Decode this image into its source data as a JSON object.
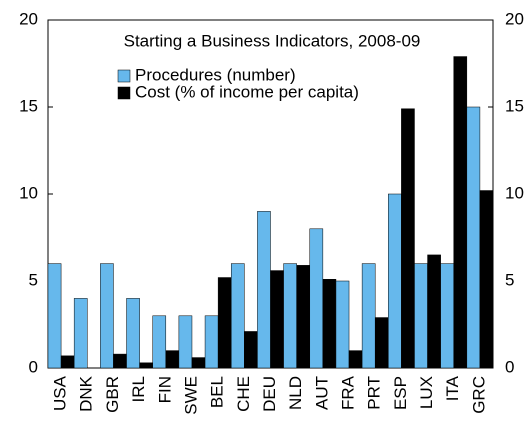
{
  "chart_data": {
    "type": "bar",
    "title": "Starting a Business Indicators, 2008-09",
    "categories": [
      "USA",
      "DNK",
      "GBR",
      "IRL",
      "FIN",
      "SWE",
      "BEL",
      "CHE",
      "DEU",
      "NLD",
      "AUT",
      "FRA",
      "PRT",
      "ESP",
      "LUX",
      "ITA",
      "GRC"
    ],
    "series": [
      {
        "name": "Procedures (number)",
        "color": "#66b8ec",
        "values": [
          6,
          4,
          6,
          4,
          3,
          3,
          3,
          6,
          9,
          6,
          8,
          5,
          6,
          10,
          6,
          6,
          15
        ]
      },
      {
        "name": "Cost (% of income per capita)",
        "color": "#000000",
        "values": [
          0.7,
          0,
          0.8,
          0.3,
          1.0,
          0.6,
          5.2,
          2.1,
          5.6,
          5.9,
          5.1,
          1.0,
          2.9,
          14.9,
          6.5,
          17.9,
          10.2
        ]
      }
    ],
    "ylim": [
      0,
      20
    ],
    "yticks": [
      0,
      5,
      10,
      15,
      20
    ],
    "y2lim": [
      0,
      20
    ],
    "y2ticks": [
      0,
      5,
      10,
      15,
      20
    ],
    "legend": "upper-left"
  }
}
